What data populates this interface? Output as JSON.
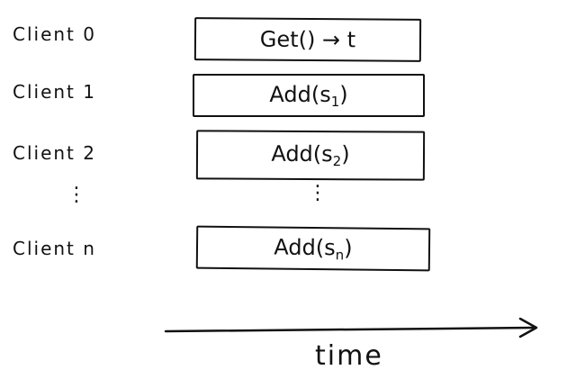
{
  "clients": [
    {
      "label": "Client 0",
      "op_main": "Get() → t",
      "op_sub": ""
    },
    {
      "label": "Client 1",
      "op_main": "Add(s",
      "op_sub": "1",
      "op_close": ")"
    },
    {
      "label": "Client 2",
      "op_main": "Add(s",
      "op_sub": "2",
      "op_close": ")"
    },
    {
      "label": "Client n",
      "op_main": "Add(s",
      "op_sub": "n",
      "op_close": ")"
    }
  ],
  "ellipsis": "⋮",
  "axis": {
    "label": "time"
  }
}
